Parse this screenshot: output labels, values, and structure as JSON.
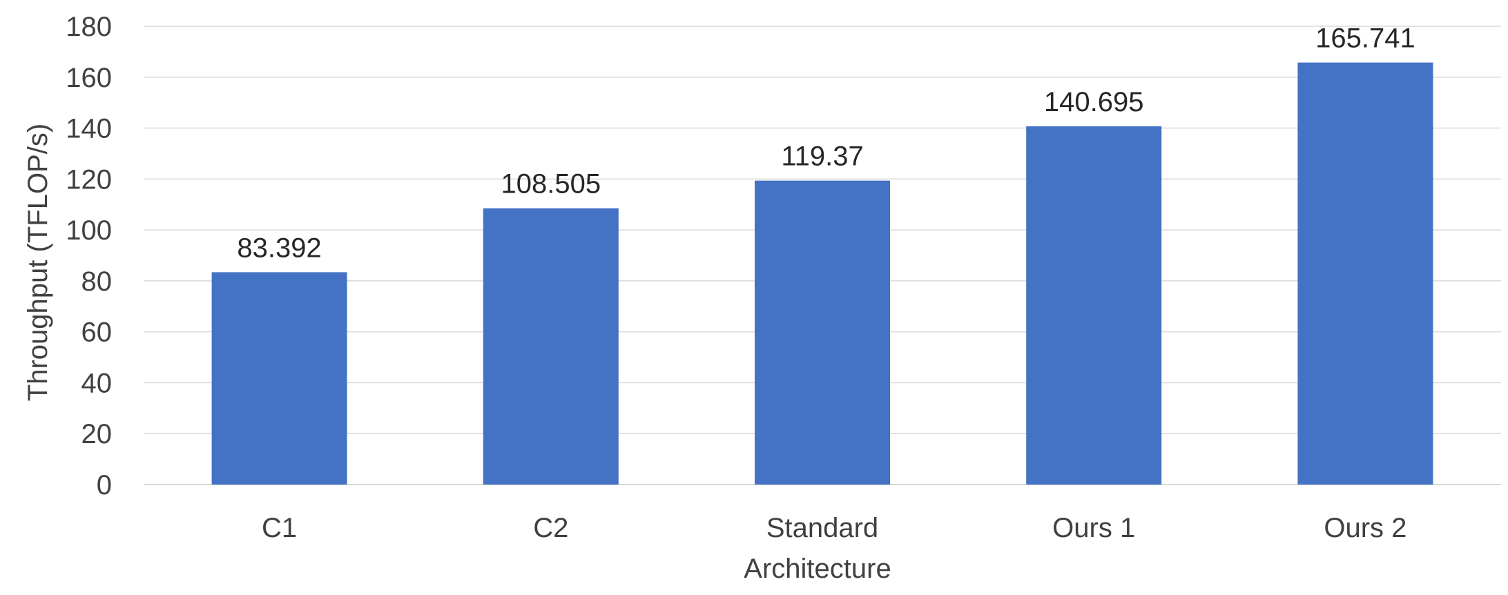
{
  "chart_data": {
    "type": "bar",
    "title": "",
    "xlabel": "Architecture",
    "ylabel": "Throughput (TFLOP/s)",
    "categories": [
      "C1",
      "C2",
      "Standard",
      "Ours 1",
      "Ours 2"
    ],
    "values": [
      83.392,
      108.505,
      119.37,
      140.695,
      165.741
    ],
    "data_labels": [
      "83.392",
      "108.505",
      "119.37",
      "140.695",
      "165.741"
    ],
    "ylim": [
      0,
      180
    ],
    "yticks": [
      "0",
      "20",
      "40",
      "60",
      "80",
      "100",
      "120",
      "140",
      "160",
      "180"
    ],
    "grid": true,
    "legend": "none",
    "bar_color": "#4472c4"
  }
}
